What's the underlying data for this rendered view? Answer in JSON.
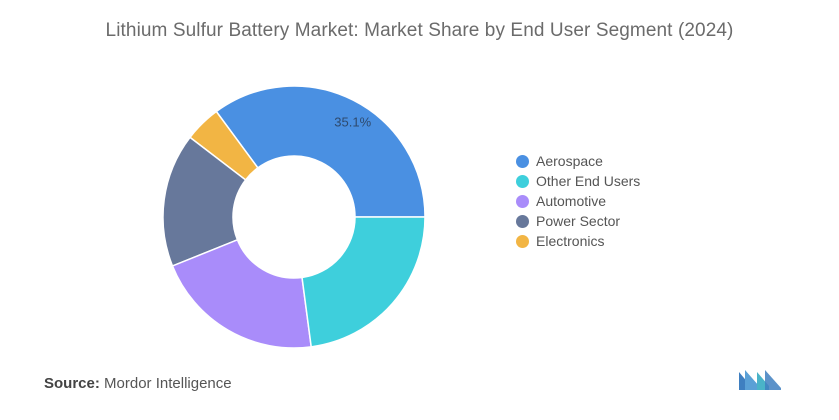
{
  "title": "Lithium Sulfur Battery Market: Market Share by End User Segment (2024)",
  "chart_data": {
    "type": "pie",
    "donut": true,
    "title": "Lithium Sulfur Battery Market: Market Share by End User Segment (2024)",
    "labels": [
      "Aerospace",
      "Electronics",
      "Power Sector",
      "Automotive",
      "Other End Users"
    ],
    "values": [
      35.1,
      4.5,
      16.5,
      21.0,
      22.9
    ],
    "colors": [
      "#4a90e2",
      "#f2b544",
      "#67789b",
      "#a98cfa",
      "#3ecfdc"
    ],
    "data_labels": [
      "35.1%",
      "",
      "",
      "",
      ""
    ],
    "legend_position": "right"
  },
  "legend": [
    {
      "label": "Aerospace",
      "color": "#4a90e2"
    },
    {
      "label": "Other End Users",
      "color": "#3ecfdc"
    },
    {
      "label": "Automotive",
      "color": "#a98cfa"
    },
    {
      "label": "Power Sector",
      "color": "#67789b"
    },
    {
      "label": "Electronics",
      "color": "#f2b544"
    }
  ],
  "source": {
    "label": "Source:",
    "text": "Mordor Intelligence"
  },
  "logo": {
    "icon": "mordor-intelligence-logo",
    "color": "#5aa0d6"
  }
}
